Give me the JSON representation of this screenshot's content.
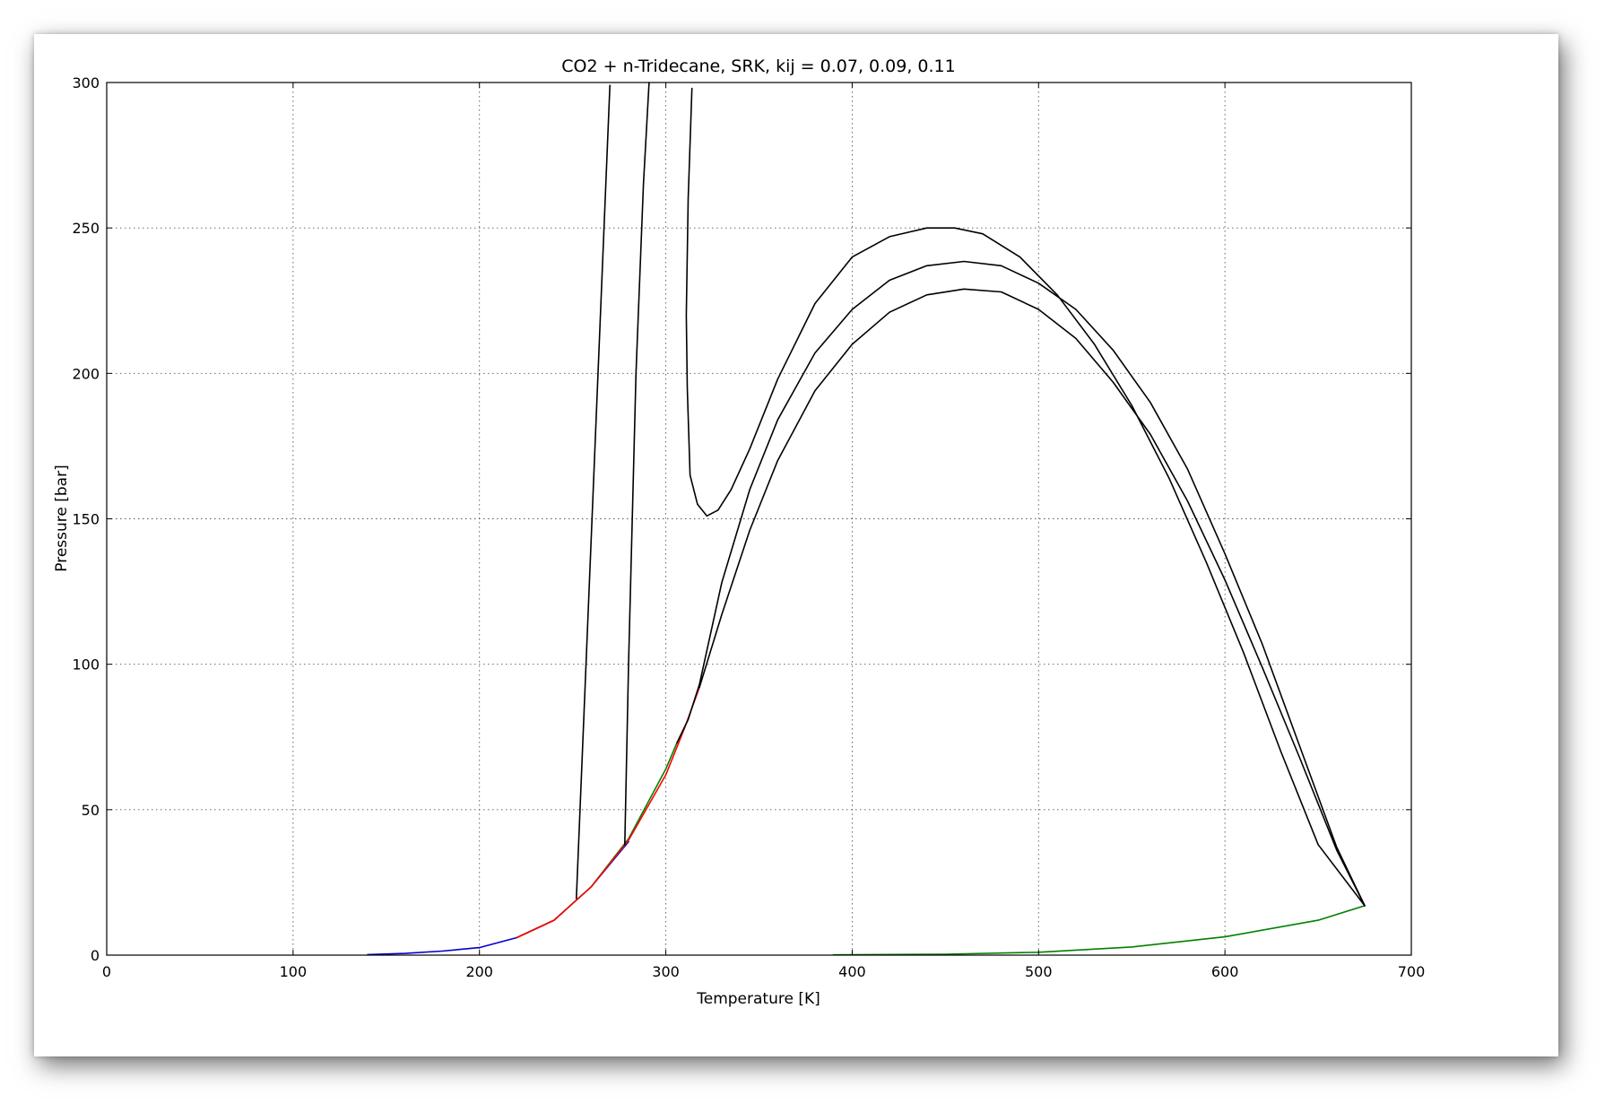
{
  "chart_data": {
    "type": "line",
    "title": "CO2 + n-Tridecane, SRK, kij = 0.07, 0.09, 0.11",
    "xlabel": "Temperature [K]",
    "ylabel": "Pressure [bar]",
    "xlim": [
      0,
      700
    ],
    "ylim": [
      0,
      300
    ],
    "xticks": [
      0,
      100,
      200,
      300,
      400,
      500,
      600,
      700
    ],
    "yticks": [
      0,
      50,
      100,
      150,
      200,
      250,
      300
    ],
    "grid": true,
    "legend": "none",
    "series": [
      {
        "color": "#0000cc",
        "x": [
          140,
          160,
          180,
          200,
          220,
          240,
          260,
          280
        ],
        "y": [
          0.2,
          0.6,
          1.4,
          2.6,
          6.0,
          12.0,
          23.5,
          39.0
        ]
      },
      {
        "color": "#008000",
        "x": [
          220,
          240,
          260,
          280,
          300,
          306
        ],
        "y": [
          6.0,
          12.0,
          23.5,
          40.0,
          64.0,
          73.0
        ]
      },
      {
        "color": "#ff0000",
        "x": [
          220,
          240,
          260,
          280,
          300,
          310,
          318
        ],
        "y": [
          6.0,
          12.0,
          23.5,
          39.5,
          62.0,
          78.0,
          92.0
        ]
      },
      {
        "color": "#008000",
        "x": [
          390,
          450,
          500,
          550,
          600,
          650,
          675
        ],
        "y": [
          0.1,
          0.3,
          1.0,
          2.8,
          6.3,
          12.0,
          17.0
        ]
      },
      {
        "color": "#000000",
        "x": [
          252,
          270
        ],
        "y": [
          19.5,
          299.0
        ]
      },
      {
        "color": "#000000",
        "x": [
          278,
          280,
          284,
          288,
          291
        ],
        "y": [
          38.0,
          100.0,
          200.0,
          265.0,
          300.0
        ]
      },
      {
        "color": "#000000",
        "x": [
          314,
          312,
          311,
          311.5,
          313,
          317,
          322,
          328,
          335,
          345,
          360,
          380,
          400,
          420,
          440,
          455,
          470,
          490,
          510,
          530,
          550,
          570,
          590,
          610,
          630,
          650,
          675
        ],
        "y": [
          298.0,
          260.0,
          220.0,
          195.0,
          165.0,
          155.0,
          151.0,
          153.0,
          160.0,
          174.0,
          198.0,
          224.0,
          240.0,
          247.0,
          250.0,
          250.0,
          248.0,
          240.0,
          227.0,
          210.0,
          189.0,
          164.0,
          135.0,
          104.0,
          70.0,
          38.0,
          17.0
        ]
      },
      {
        "color": "#000000",
        "x": [
          306,
          312,
          318,
          330,
          345,
          360,
          380,
          400,
          420,
          440,
          460,
          480,
          500,
          520,
          540,
          560,
          580,
          600,
          620,
          640,
          660,
          675
        ],
        "y": [
          73.0,
          81.0,
          93.0,
          128.0,
          160.0,
          184.0,
          207.0,
          222.0,
          232.0,
          237.0,
          238.5,
          237.0,
          231.0,
          222.0,
          208.0,
          190.0,
          167.0,
          138.0,
          107.0,
          72.0,
          37.0,
          17.0
        ]
      },
      {
        "color": "#000000",
        "x": [
          318,
          330,
          345,
          360,
          380,
          400,
          420,
          440,
          460,
          480,
          500,
          520,
          540,
          560,
          580,
          600,
          620,
          640,
          660,
          675
        ],
        "y": [
          92.0,
          117.0,
          146.0,
          170.0,
          194.0,
          210.0,
          221.0,
          227.0,
          229.0,
          228.0,
          222.0,
          212.0,
          197.0,
          179.0,
          156.0,
          129.0,
          99.0,
          68.0,
          36.0,
          17.0
        ]
      }
    ]
  }
}
